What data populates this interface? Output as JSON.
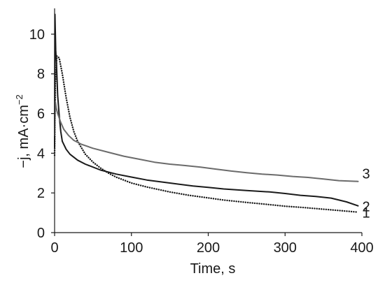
{
  "chart_data": {
    "type": "line",
    "title": "",
    "xlabel": "Time, s",
    "ylabel": "−j, mA·cm",
    "ylabel_superscript": "−2",
    "xlim": [
      0,
      400
    ],
    "ylim": [
      0,
      11.3
    ],
    "x_ticks": [
      "0",
      "100",
      "200",
      "300",
      "400"
    ],
    "y_ticks": [
      "0",
      "2",
      "4",
      "6",
      "8",
      "10"
    ],
    "grid": false,
    "legend": "none",
    "series": [
      {
        "name": "1",
        "color": "#1a1a1a",
        "style": "dotted",
        "points": [
          [
            0,
            3.9
          ],
          [
            1,
            7.5
          ],
          [
            3,
            8.9
          ],
          [
            6,
            8.8
          ],
          [
            10,
            8.0
          ],
          [
            15,
            6.8
          ],
          [
            20,
            5.8
          ],
          [
            25,
            5.1
          ],
          [
            30,
            4.6
          ],
          [
            40,
            3.95
          ],
          [
            50,
            3.55
          ],
          [
            60,
            3.25
          ],
          [
            70,
            3.0
          ],
          [
            80,
            2.8
          ],
          [
            100,
            2.5
          ],
          [
            120,
            2.3
          ],
          [
            150,
            2.05
          ],
          [
            175,
            1.88
          ],
          [
            200,
            1.75
          ],
          [
            220,
            1.64
          ],
          [
            250,
            1.52
          ],
          [
            275,
            1.43
          ],
          [
            300,
            1.33
          ],
          [
            325,
            1.26
          ],
          [
            350,
            1.18
          ],
          [
            375,
            1.1
          ],
          [
            395,
            1.03
          ]
        ]
      },
      {
        "name": "2",
        "color": "#1a1a1a",
        "style": "solid",
        "points": [
          [
            0,
            4.3
          ],
          [
            0.5,
            11.0
          ],
          [
            1.5,
            9.2
          ],
          [
            2.5,
            8.5
          ],
          [
            4,
            6.9
          ],
          [
            6,
            5.9
          ],
          [
            8,
            5.1
          ],
          [
            10,
            4.6
          ],
          [
            15,
            4.2
          ],
          [
            20,
            3.95
          ],
          [
            30,
            3.65
          ],
          [
            40,
            3.45
          ],
          [
            60,
            3.15
          ],
          [
            80,
            2.95
          ],
          [
            100,
            2.8
          ],
          [
            120,
            2.65
          ],
          [
            150,
            2.5
          ],
          [
            180,
            2.35
          ],
          [
            200,
            2.28
          ],
          [
            220,
            2.2
          ],
          [
            250,
            2.12
          ],
          [
            280,
            2.05
          ],
          [
            300,
            1.97
          ],
          [
            320,
            1.88
          ],
          [
            340,
            1.82
          ],
          [
            360,
            1.74
          ],
          [
            380,
            1.55
          ],
          [
            395,
            1.35
          ]
        ]
      },
      {
        "name": "3",
        "color": "#6b6b6b",
        "style": "solid",
        "points": [
          [
            0,
            4.9
          ],
          [
            1,
            6.6
          ],
          [
            2,
            6.3
          ],
          [
            4,
            6.0
          ],
          [
            8,
            5.55
          ],
          [
            12,
            5.2
          ],
          [
            18,
            4.9
          ],
          [
            25,
            4.65
          ],
          [
            35,
            4.45
          ],
          [
            50,
            4.25
          ],
          [
            70,
            4.05
          ],
          [
            90,
            3.85
          ],
          [
            110,
            3.7
          ],
          [
            130,
            3.55
          ],
          [
            150,
            3.45
          ],
          [
            170,
            3.38
          ],
          [
            190,
            3.3
          ],
          [
            210,
            3.2
          ],
          [
            230,
            3.1
          ],
          [
            250,
            3.02
          ],
          [
            270,
            2.95
          ],
          [
            290,
            2.9
          ],
          [
            310,
            2.83
          ],
          [
            330,
            2.78
          ],
          [
            350,
            2.7
          ],
          [
            370,
            2.62
          ],
          [
            395,
            2.58
          ]
        ]
      }
    ]
  }
}
